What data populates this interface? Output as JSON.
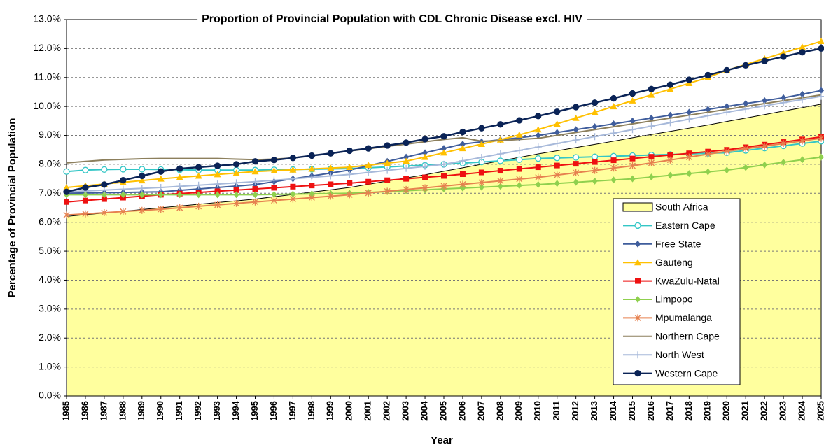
{
  "chart_data": {
    "type": "line",
    "title": "Proportion of Provincial Population with CDL Chronic Disease excl. HIV",
    "x_label": "Year",
    "y_label": "Percentage of Provincial Population",
    "categories": [
      "1985",
      "1986",
      "1987",
      "1988",
      "1989",
      "1990",
      "1991",
      "1992",
      "1993",
      "1994",
      "1995",
      "1996",
      "1997",
      "1998",
      "1999",
      "2000",
      "2001",
      "2002",
      "2003",
      "2004",
      "2005",
      "2006",
      "2007",
      "2008",
      "2009",
      "2010",
      "2011",
      "2012",
      "2013",
      "2014",
      "2015",
      "2016",
      "2017",
      "2018",
      "2019",
      "2020",
      "2021",
      "2022",
      "2023",
      "2024",
      "2025"
    ],
    "ylim": [
      0,
      13
    ],
    "yticks": [
      {
        "value": 0,
        "label": "0.0%"
      },
      {
        "value": 1,
        "label": "1.0%"
      },
      {
        "value": 2,
        "label": "2.0%"
      },
      {
        "value": 3,
        "label": "3.0%"
      },
      {
        "value": 4,
        "label": "4.0%"
      },
      {
        "value": 5,
        "label": "5.0%"
      },
      {
        "value": 6,
        "label": "6.0%"
      },
      {
        "value": 7,
        "label": "7.0%"
      },
      {
        "value": 8,
        "label": "8.0%"
      },
      {
        "value": 9,
        "label": "9.0%"
      },
      {
        "value": 10,
        "label": "10.0%"
      },
      {
        "value": 11,
        "label": "11.0%"
      },
      {
        "value": 12,
        "label": "12.0%"
      },
      {
        "value": 13,
        "label": "13.0%"
      }
    ],
    "grid": true,
    "legend": "lower right",
    "series": [
      {
        "name": "South Africa",
        "kind": "area",
        "color": "#ffff9e",
        "values": [
          6.2,
          6.26,
          6.32,
          6.38,
          6.44,
          6.5,
          6.56,
          6.62,
          6.68,
          6.74,
          6.8,
          6.88,
          6.96,
          7.04,
          7.12,
          7.2,
          7.31,
          7.42,
          7.53,
          7.64,
          7.76,
          7.88,
          8.0,
          8.12,
          8.24,
          8.36,
          8.47,
          8.58,
          8.69,
          8.8,
          8.92,
          9.03,
          9.14,
          9.25,
          9.36,
          9.48,
          9.6,
          9.72,
          9.84,
          9.96,
          10.08
        ]
      },
      {
        "name": "Eastern Cape",
        "marker": "open-circle",
        "color": "#33c6c6",
        "values": [
          7.75,
          7.8,
          7.82,
          7.83,
          7.83,
          7.82,
          7.81,
          7.8,
          7.8,
          7.8,
          7.8,
          7.81,
          7.82,
          7.83,
          7.84,
          7.85,
          7.88,
          7.91,
          7.94,
          7.97,
          8.0,
          8.04,
          8.08,
          8.12,
          8.16,
          8.2,
          8.22,
          8.24,
          8.26,
          8.28,
          8.3,
          8.32,
          8.34,
          8.36,
          8.38,
          8.4,
          8.48,
          8.56,
          8.64,
          8.72,
          8.8
        ]
      },
      {
        "name": "Free State",
        "marker": "diamond",
        "color": "#3f5d9c",
        "values": [
          7.0,
          7.01,
          7.02,
          7.03,
          7.04,
          7.05,
          7.1,
          7.15,
          7.2,
          7.25,
          7.3,
          7.4,
          7.5,
          7.6,
          7.7,
          7.8,
          7.95,
          8.1,
          8.25,
          8.4,
          8.55,
          8.7,
          8.78,
          8.85,
          8.92,
          9.0,
          9.1,
          9.2,
          9.3,
          9.4,
          9.5,
          9.6,
          9.7,
          9.8,
          9.9,
          10.0,
          10.1,
          10.2,
          10.3,
          10.42,
          10.55
        ]
      },
      {
        "name": "Gauteng",
        "marker": "triangle",
        "color": "#ffc000",
        "values": [
          7.2,
          7.26,
          7.32,
          7.38,
          7.44,
          7.5,
          7.55,
          7.6,
          7.65,
          7.7,
          7.75,
          7.78,
          7.81,
          7.84,
          7.87,
          7.9,
          7.97,
          8.04,
          8.11,
          8.25,
          8.4,
          8.55,
          8.7,
          8.85,
          9.02,
          9.2,
          9.4,
          9.6,
          9.8,
          10.0,
          10.2,
          10.4,
          10.6,
          10.8,
          11.0,
          11.25,
          11.45,
          11.65,
          11.85,
          12.05,
          12.25
        ]
      },
      {
        "name": "KwaZulu-Natal",
        "marker": "square",
        "color": "#ee1111",
        "values": [
          6.7,
          6.75,
          6.8,
          6.85,
          6.9,
          6.95,
          6.99,
          7.03,
          7.07,
          7.11,
          7.15,
          7.19,
          7.23,
          7.27,
          7.31,
          7.35,
          7.4,
          7.45,
          7.5,
          7.55,
          7.6,
          7.66,
          7.72,
          7.78,
          7.84,
          7.9,
          7.96,
          8.02,
          8.08,
          8.14,
          8.2,
          8.26,
          8.32,
          8.38,
          8.44,
          8.5,
          8.59,
          8.68,
          8.77,
          8.86,
          8.95
        ]
      },
      {
        "name": "Limpopo",
        "marker": "diamond",
        "color": "#8fd04e",
        "values": [
          6.95,
          6.95,
          6.95,
          6.95,
          6.95,
          6.95,
          6.95,
          6.95,
          6.95,
          6.95,
          6.95,
          6.96,
          6.97,
          6.98,
          6.99,
          7.0,
          7.03,
          7.06,
          7.09,
          7.12,
          7.15,
          7.18,
          7.21,
          7.24,
          7.27,
          7.3,
          7.34,
          7.38,
          7.42,
          7.46,
          7.5,
          7.56,
          7.62,
          7.68,
          7.74,
          7.8,
          7.89,
          7.98,
          8.07,
          8.16,
          8.25
        ]
      },
      {
        "name": "Mpumalanga",
        "marker": "star",
        "color": "#e6814f",
        "values": [
          6.25,
          6.29,
          6.33,
          6.37,
          6.41,
          6.45,
          6.5,
          6.55,
          6.6,
          6.65,
          6.7,
          6.75,
          6.8,
          6.85,
          6.9,
          6.95,
          7.01,
          7.07,
          7.13,
          7.19,
          7.25,
          7.31,
          7.37,
          7.43,
          7.49,
          7.55,
          7.63,
          7.71,
          7.79,
          7.87,
          7.95,
          8.05,
          8.15,
          8.25,
          8.35,
          8.45,
          8.54,
          8.63,
          8.72,
          8.81,
          8.9
        ]
      },
      {
        "name": "Northern Cape",
        "marker": "none",
        "color": "#8c7f5c",
        "values": [
          8.05,
          8.1,
          8.15,
          8.17,
          8.19,
          8.2,
          8.2,
          8.2,
          8.2,
          8.18,
          8.16,
          8.18,
          8.22,
          8.3,
          8.38,
          8.46,
          8.54,
          8.62,
          8.7,
          8.78,
          8.86,
          8.92,
          8.8,
          8.82,
          8.86,
          8.9,
          9.0,
          9.1,
          9.2,
          9.3,
          9.4,
          9.5,
          9.6,
          9.7,
          9.8,
          9.9,
          10.0,
          10.1,
          10.2,
          10.3,
          10.4
        ]
      },
      {
        "name": "North West",
        "marker": "plus",
        "color": "#a7b9da",
        "values": [
          7.05,
          7.08,
          7.11,
          7.14,
          7.17,
          7.2,
          7.24,
          7.28,
          7.32,
          7.36,
          7.4,
          7.45,
          7.5,
          7.55,
          7.6,
          7.65,
          7.72,
          7.79,
          7.86,
          7.93,
          8.0,
          8.12,
          8.24,
          8.36,
          8.48,
          8.6,
          8.72,
          8.84,
          8.96,
          9.08,
          9.2,
          9.32,
          9.44,
          9.56,
          9.68,
          9.8,
          9.91,
          10.02,
          10.13,
          10.24,
          10.35
        ]
      },
      {
        "name": "Western Cape",
        "marker": "circle",
        "color": "#0a2356",
        "values": [
          7.05,
          7.2,
          7.3,
          7.45,
          7.6,
          7.75,
          7.85,
          7.9,
          7.95,
          8.0,
          8.1,
          8.15,
          8.22,
          8.3,
          8.38,
          8.47,
          8.55,
          8.65,
          8.75,
          8.87,
          8.97,
          9.12,
          9.25,
          9.38,
          9.52,
          9.67,
          9.82,
          9.98,
          10.13,
          10.28,
          10.45,
          10.6,
          10.75,
          10.92,
          11.08,
          11.25,
          11.42,
          11.57,
          11.72,
          11.87,
          12.0
        ]
      }
    ]
  }
}
